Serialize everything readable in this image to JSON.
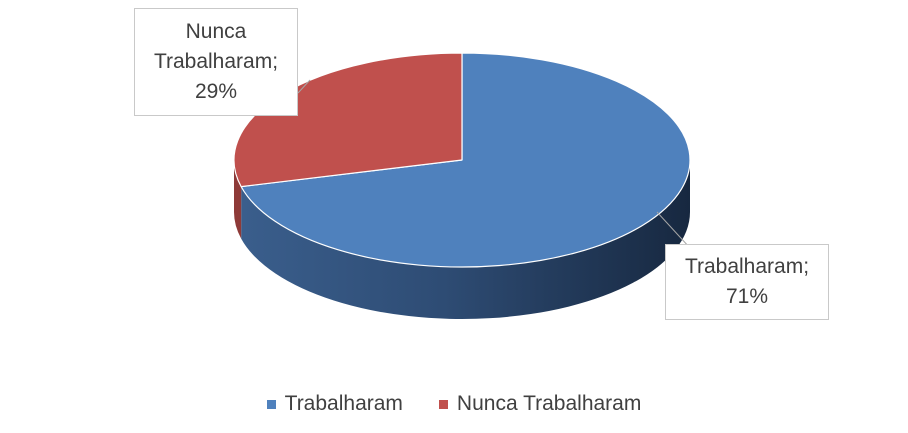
{
  "chart_data": {
    "type": "pie",
    "style": "3d",
    "title": "",
    "series": [
      {
        "slices": [
          {
            "label": "Trabalharam",
            "value": 71,
            "color": "#4F81BD",
            "data_label": "Trabalharam;\n71%"
          },
          {
            "label": "Nunca Trabalharam",
            "value": 29,
            "color": "#C0504D",
            "data_label": "Nunca\nTrabalharam;\n29%"
          }
        ]
      }
    ],
    "legend": {
      "placement": "bottom",
      "items": [
        {
          "label": "Trabalharam",
          "color": "#4F81BD"
        },
        {
          "label": "Nunca Trabalharam",
          "color": "#C0504D"
        }
      ]
    }
  }
}
